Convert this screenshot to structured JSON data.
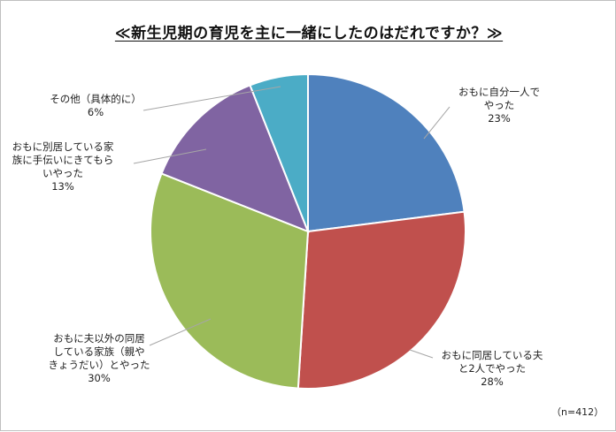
{
  "chart_data": {
    "type": "pie",
    "title": "≪新生児期の育児を主に一緒にしたのはだれですか？≫",
    "note": "（n=412）",
    "slices": [
      {
        "name": "おもに自分一人でやった",
        "lines": [
          "おもに自分一人で",
          "やった"
        ],
        "value": 23,
        "label": "23%",
        "color": "#4f81bd"
      },
      {
        "name": "おもに同居している夫と2人でやった",
        "lines": [
          "おもに同居している夫",
          "と2人でやった"
        ],
        "value": 28,
        "label": "28%",
        "color": "#c0504d"
      },
      {
        "name": "おもに夫以外の同居している家族（親やきょうだい）とやった",
        "lines": [
          "おもに夫以外の同居",
          "している家族（親や",
          "きょうだい）とやった"
        ],
        "value": 30,
        "label": "30%",
        "color": "#9bbb59"
      },
      {
        "name": "おもに別居している家族に手伝いにきてもらいやった",
        "lines": [
          "おもに別居している家",
          "族に手伝いにきてもら",
          "いやった"
        ],
        "value": 13,
        "label": "13%",
        "color": "#8064a2"
      },
      {
        "name": "その他（具体的に）",
        "lines": [
          "その他（具体的に）"
        ],
        "value": 6,
        "label": "6%",
        "color": "#4bacc6"
      }
    ]
  }
}
